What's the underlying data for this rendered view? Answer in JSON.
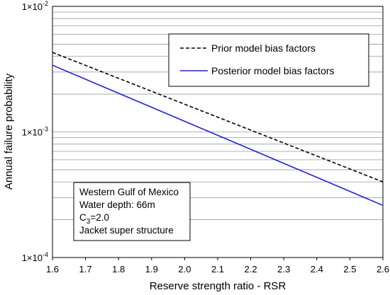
{
  "chart_data": {
    "type": "line",
    "xlabel": "Reserve strength ratio - RSR",
    "ylabel": "Annual failure probability",
    "xlim": [
      1.6,
      2.6
    ],
    "ylim": [
      0.0001,
      0.01
    ],
    "y_scale": "log",
    "grid": "horizontal (major and minor)",
    "x_ticks": [
      "1.6",
      "1.7",
      "1.8",
      "1.9",
      "2.0",
      "2.1",
      "2.2",
      "2.3",
      "2.4",
      "2.5",
      "2.6"
    ],
    "y_ticks": [
      {
        "base": "1×10",
        "exp": "-4"
      },
      {
        "base": "1×10",
        "exp": "-3"
      },
      {
        "base": "1×10",
        "exp": "-2"
      }
    ],
    "series": [
      {
        "name": "Prior model bias factors",
        "style": "dashed",
        "color": "#000000",
        "x": [
          1.6,
          2.6
        ],
        "y": [
          0.0043,
          0.0004
        ]
      },
      {
        "name": "Posterior model bias factors",
        "style": "solid",
        "color": "#1f1fdc",
        "x": [
          1.6,
          2.6
        ],
        "y": [
          0.0034,
          0.00026
        ]
      }
    ],
    "legend_position": "top-right",
    "annotation": {
      "lines": [
        {
          "text": "Western Gulf of Mexico"
        },
        {
          "text": "Water depth:  66m"
        },
        {
          "text": "C",
          "sub": "3",
          "after": "=2.0"
        },
        {
          "text": "Jacket super structure"
        }
      ],
      "position": "bottom-left"
    }
  }
}
